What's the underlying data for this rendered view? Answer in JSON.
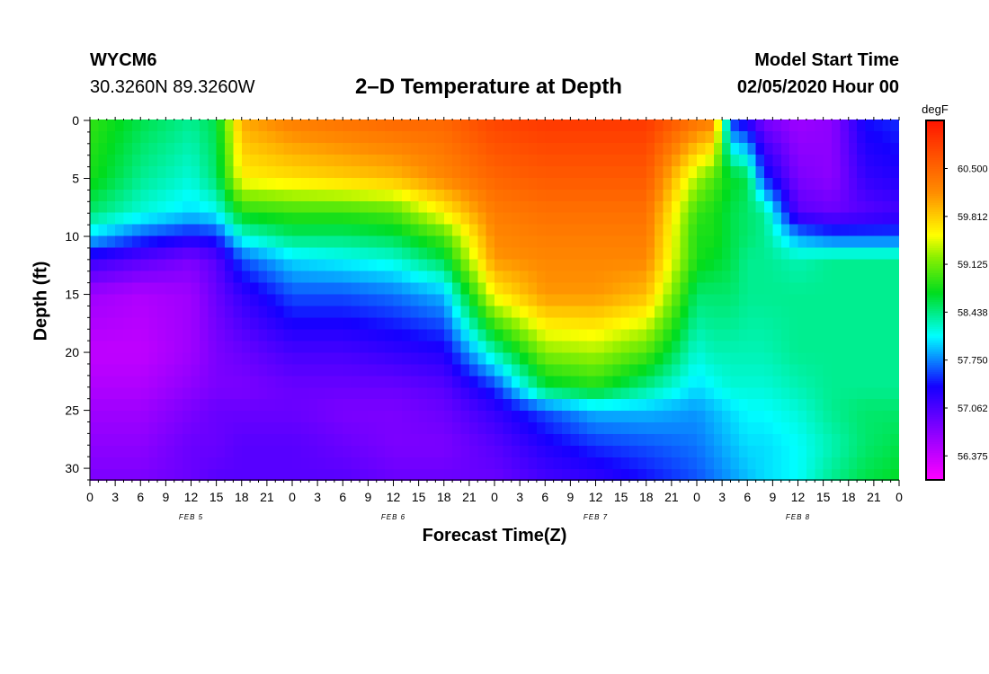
{
  "header": {
    "station": "WYCM6",
    "coords": "30.3260N 89.3260W",
    "title": "2–D Temperature at Depth",
    "model_start_label": "Model Start Time",
    "model_start_value": "02/05/2020 Hour 00"
  },
  "chart_data": {
    "type": "heatmap",
    "title": "2–D Temperature at Depth",
    "xlabel": "Forecast Time(Z)",
    "ylabel": "Depth (ft)",
    "x_hours": [
      0,
      96
    ],
    "x_tick_labels": [
      "0",
      "3",
      "6",
      "9",
      "12",
      "15",
      "18",
      "21",
      "0",
      "3",
      "6",
      "9",
      "12",
      "15",
      "18",
      "21",
      "0",
      "3",
      "6",
      "9",
      "12",
      "15",
      "18",
      "21",
      "0",
      "3",
      "6",
      "9",
      "12",
      "15",
      "18",
      "21",
      "0"
    ],
    "date_labels": [
      {
        "text": "FEB 5",
        "hour": 12
      },
      {
        "text": "FEB 6",
        "hour": 36
      },
      {
        "text": "FEB 7",
        "hour": 60
      },
      {
        "text": "FEB 8",
        "hour": 84
      }
    ],
    "y_range": [
      0,
      31
    ],
    "y_ticks": [
      0,
      5,
      10,
      15,
      20,
      25,
      30
    ],
    "colorbar": {
      "unit": "degF",
      "range": [
        56.03,
        61.19
      ],
      "ticks": [
        56.375,
        57.062,
        57.75,
        58.438,
        59.125,
        59.812,
        60.5
      ],
      "tick_labels": [
        "56.375",
        "57.062",
        "57.750",
        "58.438",
        "59.125",
        "59.812",
        "60.500"
      ]
    },
    "depth_levels_ft": [
      0,
      5,
      8,
      10,
      12,
      15,
      20,
      23,
      25,
      28,
      31
    ],
    "time_hours": [
      0,
      6,
      12,
      15,
      18,
      24,
      30,
      36,
      42,
      48,
      54,
      60,
      66,
      72,
      74,
      76,
      78,
      80,
      84,
      88,
      92,
      96
    ],
    "values": [
      [
        58.9,
        58.8,
        58.5,
        58.0,
        57.2,
        56.6,
        56.4,
        56.5,
        56.6,
        56.7,
        56.8
      ],
      [
        58.6,
        58.4,
        58.2,
        57.6,
        57.0,
        56.5,
        56.4,
        56.5,
        56.6,
        56.7,
        56.8
      ],
      [
        58.4,
        58.2,
        58.0,
        57.4,
        56.8,
        56.6,
        56.6,
        56.7,
        56.8,
        56.9,
        56.9
      ],
      [
        58.6,
        58.5,
        58.1,
        57.5,
        57.0,
        56.9,
        56.8,
        56.8,
        56.9,
        56.9,
        57.0
      ],
      [
        60.0,
        59.6,
        58.8,
        58.2,
        57.6,
        57.2,
        56.9,
        56.8,
        56.9,
        57.0,
        57.0
      ],
      [
        60.3,
        59.7,
        58.9,
        58.5,
        58.0,
        57.6,
        57.1,
        56.9,
        56.9,
        57.0,
        57.0
      ],
      [
        60.4,
        59.8,
        58.9,
        58.5,
        58.1,
        57.6,
        57.1,
        56.9,
        56.8,
        56.9,
        57.0
      ],
      [
        60.5,
        59.9,
        59.0,
        58.6,
        58.2,
        57.7,
        57.2,
        56.9,
        56.8,
        56.8,
        56.9
      ],
      [
        60.5,
        60.2,
        59.6,
        59.0,
        58.6,
        57.9,
        57.3,
        57.0,
        56.9,
        56.8,
        56.9
      ],
      [
        60.8,
        60.5,
        60.3,
        60.2,
        60.1,
        59.6,
        58.3,
        57.5,
        57.2,
        57.0,
        56.9
      ],
      [
        60.9,
        60.6,
        60.4,
        60.3,
        60.2,
        60.1,
        59.2,
        58.6,
        57.6,
        57.3,
        57.1
      ],
      [
        60.9,
        60.6,
        60.4,
        60.3,
        60.2,
        60.1,
        59.3,
        58.8,
        57.9,
        57.5,
        57.2
      ],
      [
        60.9,
        60.6,
        60.4,
        60.3,
        60.2,
        59.9,
        59.0,
        58.4,
        57.9,
        57.6,
        57.4
      ],
      [
        60.4,
        59.3,
        58.9,
        58.8,
        58.8,
        58.5,
        58.2,
        58.0,
        57.8,
        57.7,
        57.6
      ],
      [
        60.3,
        59.0,
        58.8,
        58.8,
        58.7,
        58.5,
        58.3,
        58.1,
        57.9,
        57.8,
        57.7
      ],
      [
        57.5,
        58.7,
        58.6,
        58.6,
        58.6,
        58.5,
        58.3,
        58.2,
        58.0,
        57.9,
        57.8
      ],
      [
        57.2,
        58.6,
        58.5,
        58.5,
        58.4,
        58.4,
        58.3,
        58.2,
        58.1,
        58.0,
        57.9
      ],
      [
        56.8,
        57.5,
        58.4,
        58.4,
        58.4,
        58.4,
        58.3,
        58.2,
        58.1,
        58.0,
        58.0
      ],
      [
        56.6,
        56.8,
        57.0,
        57.8,
        58.3,
        58.4,
        58.4,
        58.3,
        58.2,
        58.1,
        58.1
      ],
      [
        56.7,
        56.7,
        56.9,
        57.6,
        58.4,
        58.4,
        58.4,
        58.4,
        58.4,
        58.3,
        58.4
      ],
      [
        57.4,
        57.2,
        57.0,
        57.6,
        58.4,
        58.4,
        58.4,
        58.4,
        58.5,
        58.5,
        58.6
      ],
      [
        57.5,
        57.3,
        57.1,
        57.6,
        58.4,
        58.4,
        58.4,
        58.4,
        58.5,
        58.6,
        58.7
      ]
    ]
  }
}
